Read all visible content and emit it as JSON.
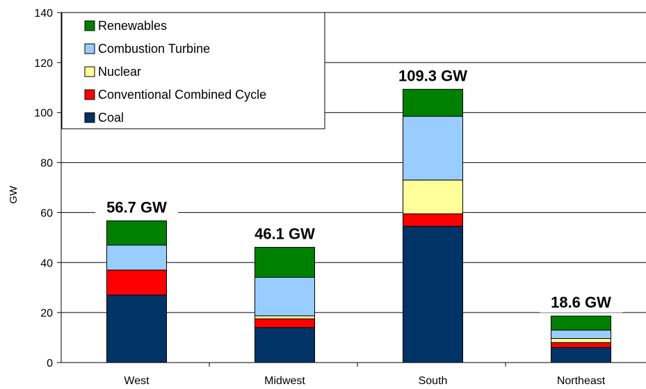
{
  "chart_data": {
    "type": "bar",
    "stacked": true,
    "ylabel": "GW",
    "ylim": [
      0,
      140
    ],
    "yticks": [
      "0",
      "20",
      "40",
      "60",
      "80",
      "100",
      "120",
      "140"
    ],
    "categories": [
      "West",
      "Midwest",
      "South",
      "Northeast"
    ],
    "totals": [
      "56.7 GW",
      "46.1 GW",
      "109.3 GW",
      "18.6 GW"
    ],
    "grid": true,
    "legend_position": "top-left",
    "series": [
      {
        "name": "Coal",
        "color": "#003366",
        "values": [
          27.0,
          14.0,
          54.5,
          6.0
        ]
      },
      {
        "name": "Conventional Combined Cycle",
        "color": "#ff0000",
        "values": [
          10.0,
          3.5,
          5.0,
          2.0
        ]
      },
      {
        "name": "Nuclear",
        "color": "#ffff99",
        "values": [
          0.0,
          1.2,
          13.5,
          1.6
        ]
      },
      {
        "name": "Combustion Turbine",
        "color": "#99ccff",
        "values": [
          10.0,
          15.4,
          25.5,
          3.4
        ]
      },
      {
        "name": "Renewables",
        "color": "#008000",
        "values": [
          9.7,
          12.0,
          10.8,
          5.6
        ]
      }
    ],
    "legend_order": [
      "Renewables",
      "Combustion Turbine",
      "Nuclear",
      "Conventional Combined Cycle",
      "Coal"
    ]
  }
}
